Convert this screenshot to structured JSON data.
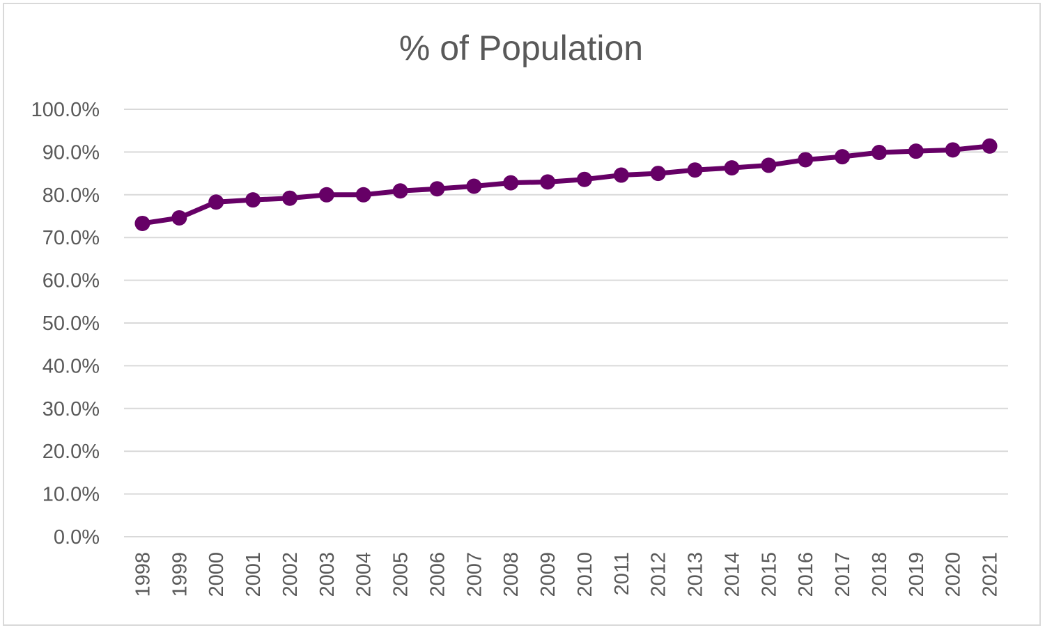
{
  "chart_data": {
    "type": "line",
    "title": "% of Population",
    "xlabel": "",
    "ylabel": "",
    "categories": [
      "1998",
      "1999",
      "2000",
      "2001",
      "2002",
      "2003",
      "2004",
      "2005",
      "2006",
      "2007",
      "2008",
      "2009",
      "2010",
      "2011",
      "2012",
      "2013",
      "2014",
      "2015",
      "2016",
      "2017",
      "2018",
      "2019",
      "2020",
      "2021"
    ],
    "series": [
      {
        "values": [
          73.3,
          74.6,
          78.3,
          78.8,
          79.2,
          80.0,
          80.0,
          80.9,
          81.4,
          82.0,
          82.8,
          83.0,
          83.6,
          84.6,
          85.0,
          85.8,
          86.3,
          86.9,
          88.2,
          88.9,
          89.9,
          90.2,
          90.5,
          91.4
        ]
      }
    ],
    "ylim": [
      0,
      100
    ],
    "yticks": [
      "0.0%",
      "10.0%",
      "20.0%",
      "30.0%",
      "40.0%",
      "50.0%",
      "60.0%",
      "70.0%",
      "80.0%",
      "90.0%",
      "100.0%"
    ],
    "grid": true,
    "legend": "none",
    "colors": {
      "line": "#660066",
      "grid": "#d9d9d9",
      "text": "#595959"
    }
  }
}
